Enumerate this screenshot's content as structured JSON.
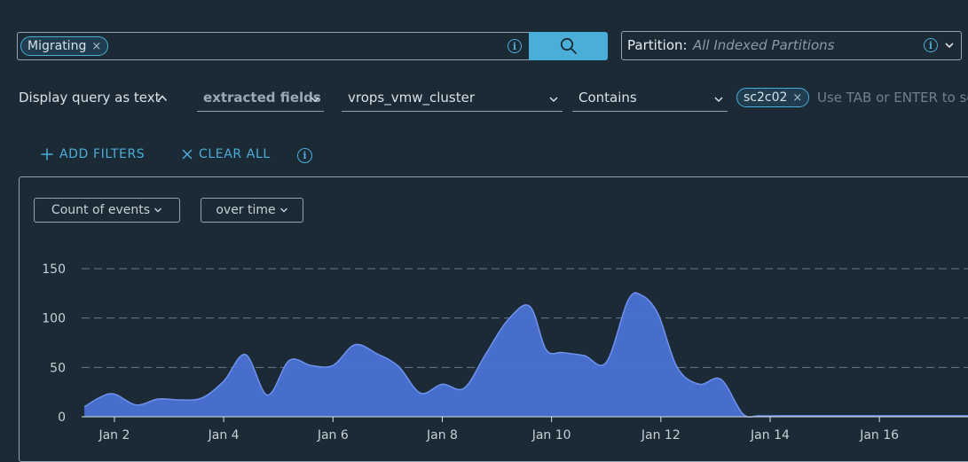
{
  "search": {
    "chip_label": "Migrating",
    "chip_remove": "×",
    "info_icon": "info-icon",
    "button_icon": "search-icon"
  },
  "partition": {
    "label": "Partition:",
    "value": "All Indexed Partitions",
    "info_icon": "info-icon",
    "chevron": "chevron-down-icon"
  },
  "query": {
    "display_toggle": "Display query as text",
    "field_source": "extracted fields",
    "field_name": "vrops_vmw_cluster",
    "operator": "Contains",
    "value_chip": "sc2c02",
    "value_chip_remove": "×",
    "value_placeholder": "Use TAB or ENTER to se"
  },
  "filters": {
    "add_label": "ADD FILTERS",
    "clear_label": "CLEAR ALL",
    "info_icon": "info-icon"
  },
  "chart_controls": {
    "metric": "Count of events",
    "grouping": "over time"
  },
  "colors": {
    "accent": "#49afd9",
    "background": "#1b2a35",
    "area_fill": "#4a72d6",
    "area_line": "#6e92ee"
  },
  "chart_data": {
    "type": "area",
    "title": "",
    "xlabel": "",
    "ylabel": "",
    "ylim": [
      0,
      150
    ],
    "yticks": [
      0,
      50,
      100,
      150
    ],
    "xlim": [
      1.4,
      17.8
    ],
    "xticks": [
      2,
      4,
      6,
      8,
      10,
      12,
      14,
      16
    ],
    "xtick_labels": [
      "Jan 2",
      "Jan 4",
      "Jan 6",
      "Jan 8",
      "Jan 10",
      "Jan 12",
      "Jan 14",
      "Jan 16"
    ],
    "grid": "horizontal dashed",
    "x": [
      1.45,
      1.75,
      2.0,
      2.4,
      2.8,
      3.2,
      3.6,
      4.0,
      4.4,
      4.8,
      5.2,
      5.6,
      6.0,
      6.4,
      6.8,
      7.2,
      7.6,
      8.0,
      8.4,
      8.8,
      9.2,
      9.6,
      9.9,
      10.2,
      10.6,
      11.0,
      11.4,
      11.65,
      11.95,
      12.3,
      12.7,
      13.1,
      13.5,
      13.8,
      14.2,
      15.0,
      16.0,
      17.0,
      17.8
    ],
    "y": [
      10,
      20,
      23,
      12,
      18,
      17,
      19,
      36,
      63,
      22,
      57,
      52,
      52,
      73,
      64,
      51,
      24,
      33,
      29,
      64,
      98,
      112,
      68,
      65,
      62,
      55,
      118,
      123,
      104,
      50,
      33,
      38,
      3,
      1,
      1,
      1,
      1,
      1,
      1
    ]
  }
}
